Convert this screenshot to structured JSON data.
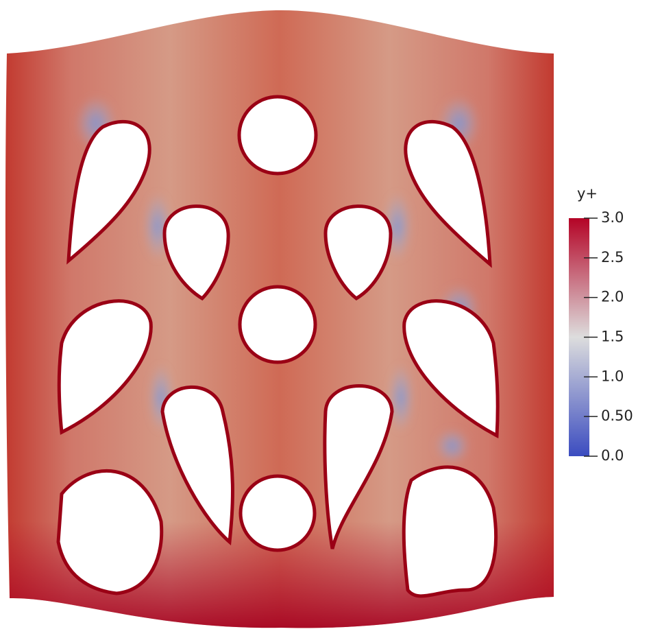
{
  "chart_data": {
    "type": "colorfield",
    "title": "y+",
    "ylim": [
      0,
      3
    ],
    "yticks": [
      {
        "value": 0,
        "label": "0.0"
      },
      {
        "value": 0.5,
        "label": "0.50"
      },
      {
        "value": 1,
        "label": "1.0"
      },
      1.5,
      {
        "value": 2,
        "label": "2.0"
      },
      2.5,
      {
        "value": 3,
        "label": "3.0"
      }
    ],
    "colors": [
      "#3b4cc0",
      "#dddddd",
      "#b40426"
    ]
  }
}
